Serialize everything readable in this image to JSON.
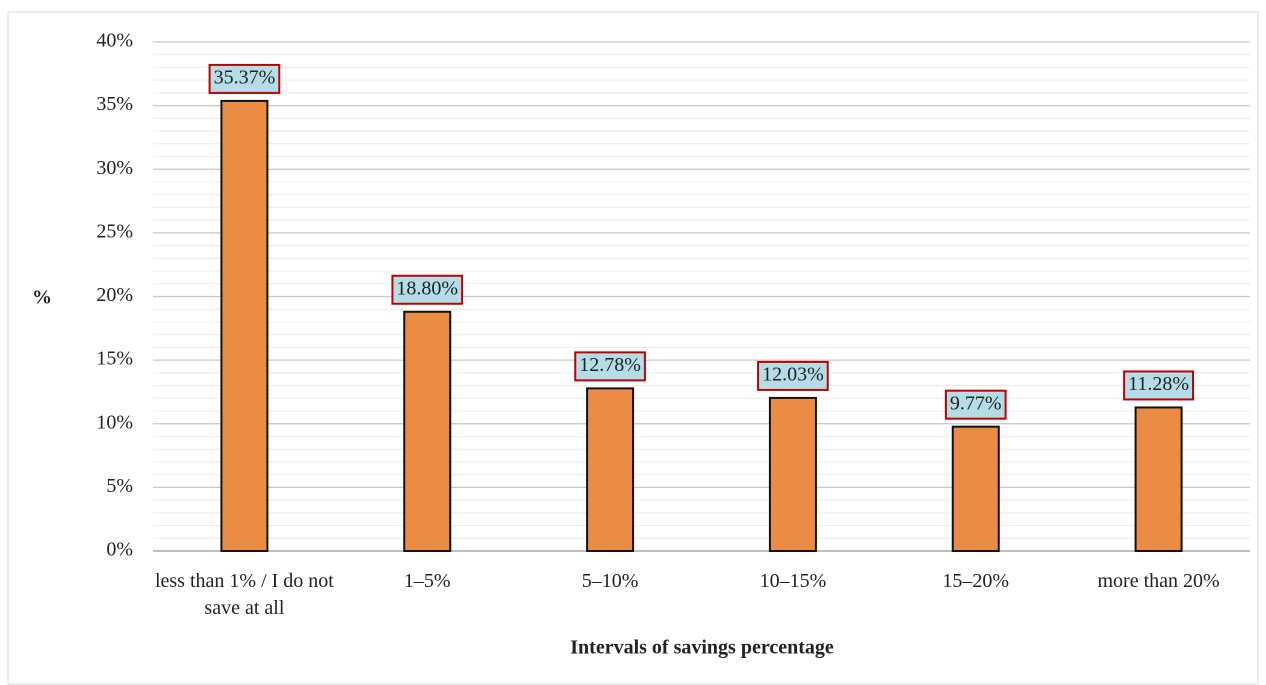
{
  "chart_data": {
    "type": "bar",
    "x_label": "Intervals of savings percentage",
    "y_label": "%",
    "categories": [
      "less than 1% / I do not save at all",
      "1–5%",
      "5–10%",
      "10–15%",
      "15–20%",
      "more than 20%"
    ],
    "values": [
      35.37,
      18.8,
      12.78,
      12.03,
      9.77,
      11.28
    ],
    "value_labels": [
      "35.37%",
      "18.80%",
      "12.78%",
      "12.03%",
      "9.77%",
      "11.28%"
    ],
    "color": "#ea8c44",
    "label_fill": "#b4dde7",
    "label_border": "#c00000",
    "ylim": [
      0,
      40
    ],
    "yticks": [
      {
        "value": 0,
        "label": "0%"
      },
      {
        "value": 5,
        "label": "5%"
      },
      {
        "value": 10,
        "label": "10%"
      },
      {
        "value": 15,
        "label": "15%"
      },
      {
        "value": 20,
        "label": "20%"
      },
      {
        "value": 25,
        "label": "25%"
      },
      {
        "value": 30,
        "label": "30%"
      },
      {
        "value": 35,
        "label": "35%"
      },
      {
        "value": 40,
        "label": "40%"
      }
    ],
    "grid": true,
    "minor_grid": true
  }
}
